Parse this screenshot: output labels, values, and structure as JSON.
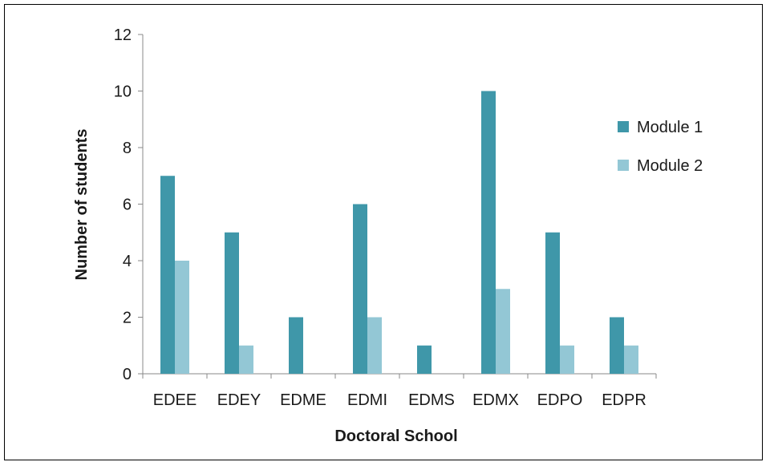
{
  "chart_data": {
    "type": "bar",
    "title": "",
    "xlabel": "Doctoral School",
    "ylabel": "Number of students",
    "categories": [
      "EDEE",
      "EDEY",
      "EDME",
      "EDMI",
      "EDMS",
      "EDMX",
      "EDPO",
      "EDPR"
    ],
    "series": [
      {
        "name": "Module 1",
        "values": [
          7,
          5,
          2,
          6,
          1,
          10,
          5,
          2
        ],
        "color": "#3f97a9"
      },
      {
        "name": "Module 2",
        "values": [
          4,
          1,
          0,
          2,
          0,
          3,
          1,
          1
        ],
        "color": "#93c7d5"
      }
    ],
    "ylim": [
      0,
      12
    ],
    "yticks": [
      0,
      2,
      4,
      6,
      8,
      10,
      12
    ],
    "grid": false,
    "legend": "right"
  }
}
